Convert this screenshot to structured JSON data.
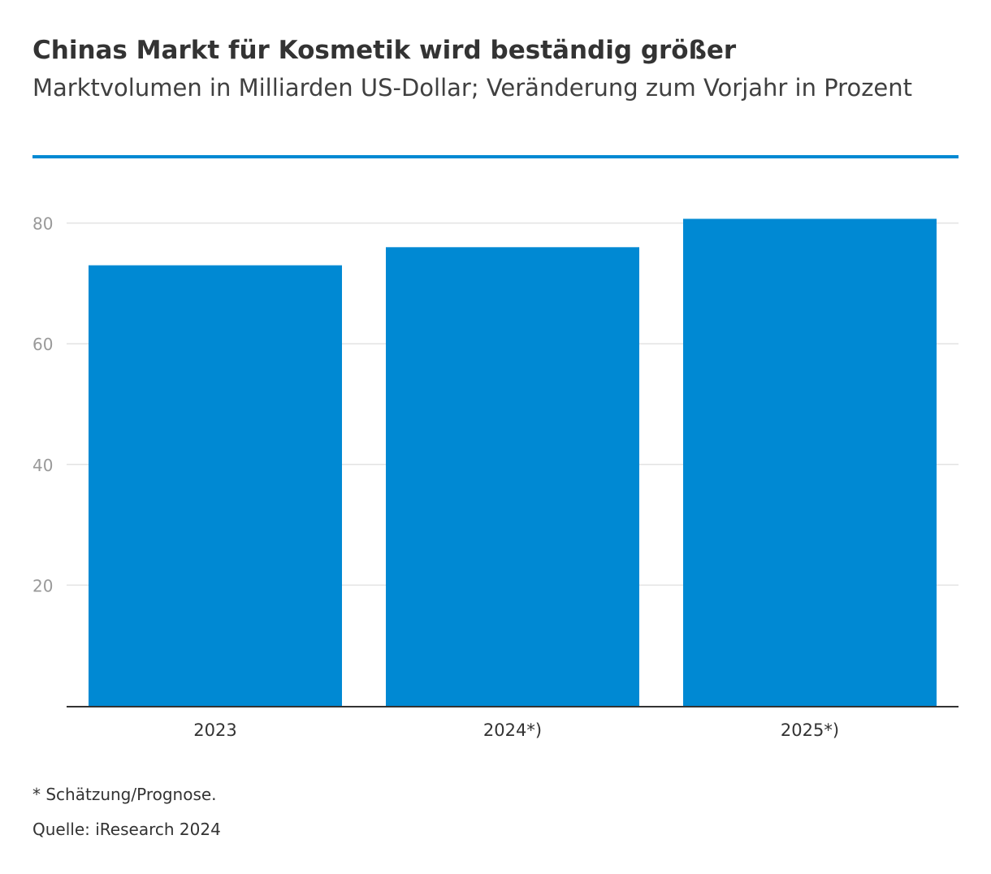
{
  "header": {
    "title": "Chinas Markt für Kosmetik wird beständig größer",
    "subtitle": "Marktvolumen in Milliarden US-Dollar; Veränderung zum Vorjahr in Prozent"
  },
  "footer": {
    "footnote": "* Schätzung/Prognose.",
    "source": "Quelle: iResearch 2024"
  },
  "colors": {
    "bar": "#0089d3",
    "accent_line": "#0089d3",
    "grid": "#e3e3e3",
    "tick_text": "#999999",
    "axis": "#333333"
  },
  "chart_data": {
    "type": "bar",
    "categories": [
      "2023",
      "2024*)",
      "2025*)"
    ],
    "values": [
      73,
      76,
      80.7
    ],
    "ylim": [
      0,
      80
    ],
    "yticks": [
      20,
      40,
      60,
      80
    ],
    "grid": true,
    "legend": "none"
  }
}
